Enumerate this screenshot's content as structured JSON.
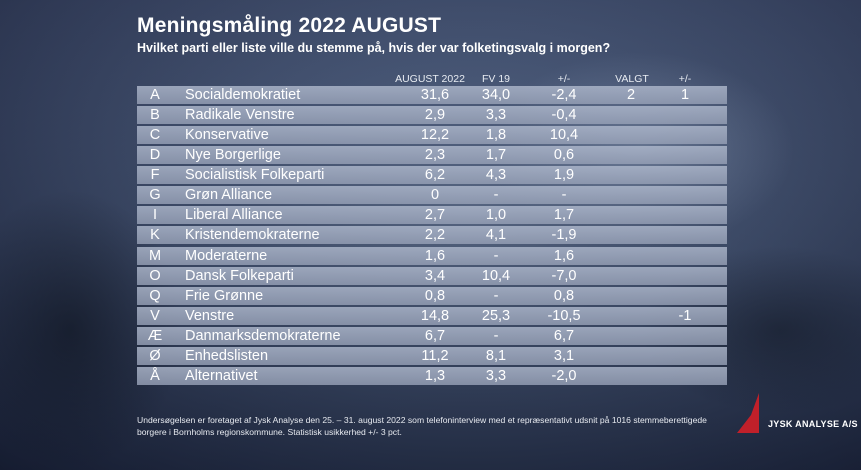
{
  "header": {
    "title": "Meningsmåling 2022 AUGUST",
    "subtitle": "Hvilket parti eller liste ville du stemme på, hvis der var folketingsvalg i morgen?"
  },
  "columns": {
    "august": "AUGUST 2022",
    "fv19": "FV 19",
    "diff": "+/-",
    "valgt": "VALGT",
    "valgt_diff": "+/-"
  },
  "chart_data": {
    "type": "table",
    "title": "Meningsmåling 2022 AUGUST",
    "rows": [
      {
        "letter": "A",
        "party": "Socialdemokratiet",
        "august": "31,6",
        "fv19": "34,0",
        "diff": "-2,4",
        "valgt": "2",
        "valgt_diff": "1"
      },
      {
        "letter": "B",
        "party": "Radikale Venstre",
        "august": "2,9",
        "fv19": "3,3",
        "diff": "-0,4",
        "valgt": "",
        "valgt_diff": ""
      },
      {
        "letter": "C",
        "party": "Konservative",
        "august": "12,2",
        "fv19": "1,8",
        "diff": "10,4",
        "valgt": "",
        "valgt_diff": ""
      },
      {
        "letter": "D",
        "party": "Nye Borgerlige",
        "august": "2,3",
        "fv19": "1,7",
        "diff": "0,6",
        "valgt": "",
        "valgt_diff": ""
      },
      {
        "letter": "F",
        "party": "Socialistisk Folkeparti",
        "august": "6,2",
        "fv19": "4,3",
        "diff": "1,9",
        "valgt": "",
        "valgt_diff": ""
      },
      {
        "letter": "G",
        "party": "Grøn Alliance",
        "august": "0",
        "fv19": "-",
        "diff": "-",
        "valgt": "",
        "valgt_diff": ""
      },
      {
        "letter": "I",
        "party": "Liberal Alliance",
        "august": "2,7",
        "fv19": "1,0",
        "diff": "1,7",
        "valgt": "",
        "valgt_diff": ""
      },
      {
        "letter": "K",
        "party": "Kristendemokraterne",
        "august": "2,2",
        "fv19": "4,1",
        "diff": "-1,9",
        "valgt": "",
        "valgt_diff": ""
      },
      {
        "letter": "M",
        "party": "Moderaterne",
        "august": "1,6",
        "fv19": "-",
        "diff": "1,6",
        "valgt": "",
        "valgt_diff": ""
      },
      {
        "letter": "O",
        "party": "Dansk Folkeparti",
        "august": "3,4",
        "fv19": "10,4",
        "diff": "-7,0",
        "valgt": "",
        "valgt_diff": ""
      },
      {
        "letter": "Q",
        "party": "Frie Grønne",
        "august": "0,8",
        "fv19": "-",
        "diff": "0,8",
        "valgt": "",
        "valgt_diff": ""
      },
      {
        "letter": "V",
        "party": "Venstre",
        "august": "14,8",
        "fv19": "25,3",
        "diff": "-10,5",
        "valgt": "",
        "valgt_diff": "-1"
      },
      {
        "letter": "Æ",
        "party": "Danmarksdemokraterne",
        "august": "6,7",
        "fv19": "-",
        "diff": "6,7",
        "valgt": "",
        "valgt_diff": ""
      },
      {
        "letter": "Ø",
        "party": "Enhedslisten",
        "august": "11,2",
        "fv19": "8,1",
        "diff": "3,1",
        "valgt": "",
        "valgt_diff": ""
      },
      {
        "letter": "Å",
        "party": "Alternativet",
        "august": "1,3",
        "fv19": "3,3",
        "diff": "-2,0",
        "valgt": "",
        "valgt_diff": ""
      }
    ]
  },
  "footnote": "Undersøgelsen er foretaget af Jysk Analyse den 25. – 31. august 2022 som telefoninterview med et repræsentativt udsnit på 1016 stemmeberettigede borgere i Bornholms regionskommune. Statistisk usikkerhed +/- 3 pct.",
  "brand": {
    "name": "JYSK ANALYSE A/S",
    "logo_color": "#c0202a"
  }
}
